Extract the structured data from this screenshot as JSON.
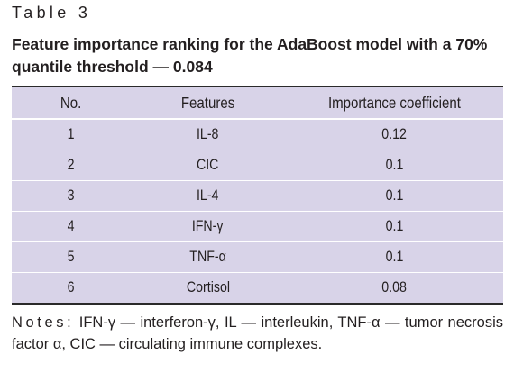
{
  "table_label": "Table 3",
  "caption": "Feature importance ranking for the AdaBoost model with a 70% quantile threshold — 0.084",
  "table": {
    "headers": [
      "No.",
      "Features",
      "Importance coefficient"
    ],
    "rows": [
      [
        "1",
        "IL-8",
        "0.12"
      ],
      [
        "2",
        "CIC",
        "0.1"
      ],
      [
        "3",
        "IL-4",
        "0.1"
      ],
      [
        "4",
        "IFN-γ",
        "0.1"
      ],
      [
        "5",
        "TNF-α",
        "0.1"
      ],
      [
        "6",
        "Cortisol",
        "0.08"
      ]
    ]
  },
  "notes": {
    "label": "Notes:",
    "text": "IFN-γ — interferon-γ, IL — interleukin, TNF-α — tumor necrosis factor α, CIC — circulating immune complexes."
  }
}
